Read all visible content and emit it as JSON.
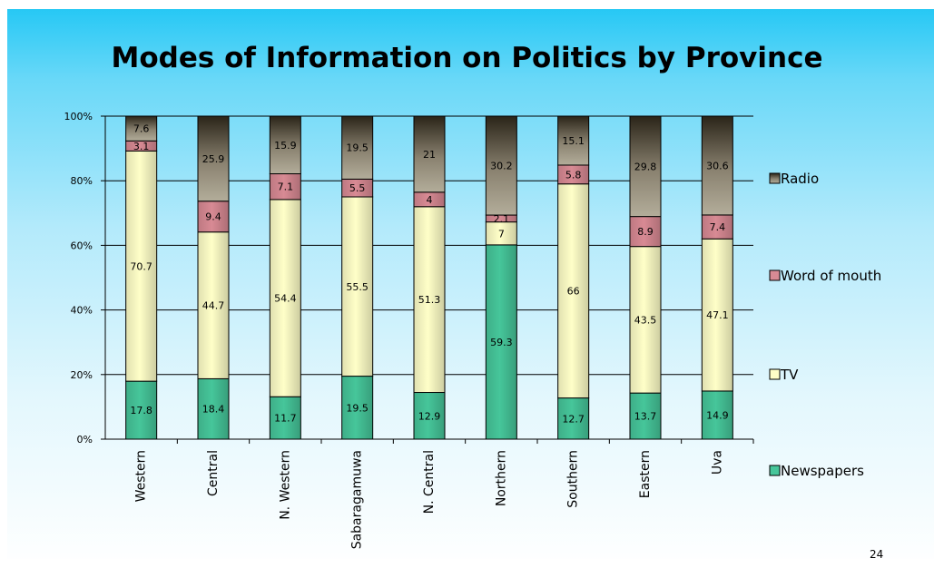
{
  "slide": {
    "page_number": "24"
  },
  "colors": {
    "Newspapers": "#46c69a",
    "TV": "#ffffc8",
    "Word of mouth": "#d88a94",
    "Radio": "#999080"
  },
  "chart_data": {
    "type": "bar",
    "stacked": true,
    "percent": true,
    "title": "Modes of Information on Politics by Province",
    "xlabel": "",
    "ylabel": "",
    "ylim": [
      0,
      100
    ],
    "yticks": [
      "0%",
      "20%",
      "40%",
      "60%",
      "80%",
      "100%"
    ],
    "grid": true,
    "legend": "right",
    "categories": [
      "Western",
      "Central",
      "N. Western",
      "Sabaragamuwa",
      "N. Central",
      "Northern",
      "Southern",
      "Eastern",
      "Uva"
    ],
    "series": [
      {
        "name": "Newspapers",
        "values": [
          17.8,
          18.4,
          11.7,
          19.5,
          12.9,
          59.3,
          12.7,
          13.7,
          14.9
        ],
        "labels": [
          "17.8",
          "18.4",
          "11.7",
          "19.5",
          "12.9",
          "59.3",
          "12.7",
          "13.7",
          "14.9"
        ]
      },
      {
        "name": "TV",
        "values": [
          70.7,
          44.7,
          54.4,
          55.5,
          51.3,
          7,
          66,
          43.5,
          47.1
        ],
        "labels": [
          "70.7",
          "44.7",
          "54.4",
          "55.5",
          "51.3",
          "7",
          "66",
          "43.5",
          "47.1"
        ]
      },
      {
        "name": "Word of mouth",
        "values": [
          3.1,
          9.4,
          7.1,
          5.5,
          4,
          2.1,
          5.8,
          8.9,
          7.4
        ],
        "labels": [
          "3.1",
          "9.4",
          "7.1",
          "5.5",
          "4",
          "2.1",
          "5.8",
          "8.9",
          "7.4"
        ]
      },
      {
        "name": "Radio",
        "values": [
          7.6,
          25.9,
          15.9,
          19.5,
          21,
          30.2,
          15.1,
          29.8,
          30.6
        ],
        "labels": [
          "7.6",
          "25.9",
          "15.9",
          "19.5",
          "21",
          "30.2",
          "15.1",
          "29.8",
          "30.6"
        ]
      }
    ]
  }
}
